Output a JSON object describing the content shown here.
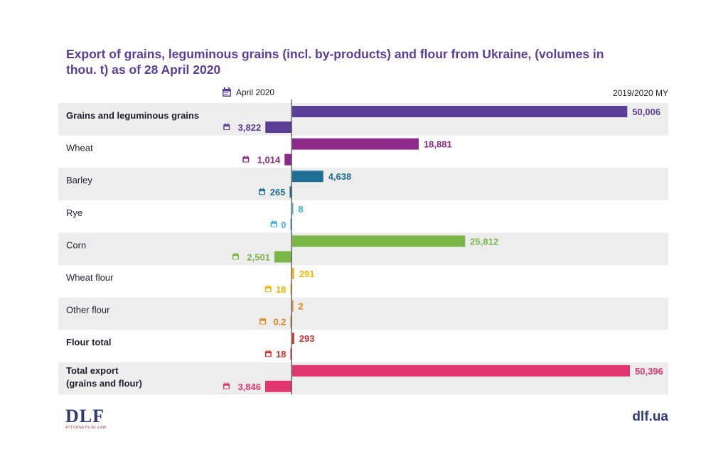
{
  "title": "Export of grains, leguminous grains (incl. by-products) and flour from Ukraine, (volumes in thou. t) as of 28 April 2020",
  "legend": {
    "april_label": "April 2020",
    "my_label": "2019/2020 MY",
    "calendar_icon": "calendar-icon"
  },
  "footer": {
    "logo": "DLF",
    "logo_sub": "ATTORNEYS-AT-LAW",
    "site": "dlf.ua"
  },
  "chart_data": {
    "type": "bar",
    "categories": [
      "Grains and leguminous grains",
      "Wheat",
      "Barley",
      "Rye",
      "Corn",
      "Wheat flour",
      "Other flour",
      "Flour total",
      "Total export (grains and flour)"
    ],
    "bold_categories": [
      true,
      false,
      false,
      false,
      false,
      false,
      false,
      true,
      true
    ],
    "colors": [
      "#5b3e98",
      "#8e2a8a",
      "#1f6f96",
      "#3aaee0",
      "#7ab648",
      "#f2b705",
      "#e8841e",
      "#d32f2f",
      "#e0356f"
    ],
    "series": [
      {
        "name": "2019/2020 MY",
        "values": [
          50006,
          18881,
          4638,
          8,
          25812,
          291,
          2,
          293,
          50396
        ],
        "labels": [
          "50,006",
          "18,881",
          "4,638",
          "8",
          "25,812",
          "291",
          "2",
          "293",
          "50,396"
        ]
      },
      {
        "name": "April 2020",
        "values": [
          3822,
          1014,
          265,
          0,
          2501,
          18,
          0.2,
          18,
          3846
        ],
        "labels": [
          "3,822",
          "1,014",
          "265",
          "0",
          "2,501",
          "18",
          "0.2",
          "18",
          "3,846"
        ]
      }
    ]
  }
}
